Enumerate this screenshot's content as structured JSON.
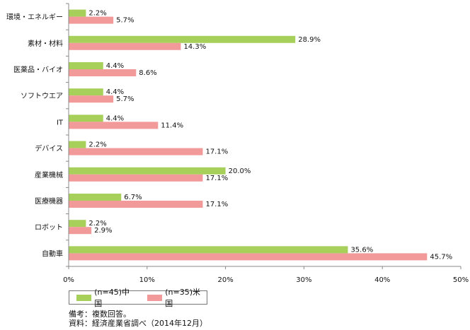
{
  "chart_data": {
    "type": "bar",
    "orientation": "horizontal",
    "categories": [
      "環境・エネルギー",
      "素材・材料",
      "医薬品・バイオ",
      "ソフトウエア",
      "IT",
      "デバイス",
      "産業機械",
      "医療機器",
      "ロボット",
      "自動車"
    ],
    "series": [
      {
        "name": "(n=45)中国",
        "color": "#a6d05a",
        "values": [
          2.2,
          28.9,
          4.4,
          4.4,
          4.4,
          2.2,
          20.0,
          6.7,
          2.2,
          35.6
        ],
        "labels": [
          "2.2%",
          "28.9%",
          "4.4%",
          "4.4%",
          "4.4%",
          "2.2%",
          "20.0%",
          "6.7%",
          "2.2%",
          "35.6%"
        ]
      },
      {
        "name": "(n=35)米国",
        "color": "#f29a99",
        "values": [
          5.7,
          14.3,
          8.6,
          5.7,
          11.4,
          17.1,
          17.1,
          17.1,
          2.9,
          45.7
        ],
        "labels": [
          "5.7%",
          "14.3%",
          "8.6%",
          "5.7%",
          "11.4%",
          "17.1%",
          "17.1%",
          "17.1%",
          "2.9%",
          "45.7%"
        ]
      }
    ],
    "xlim": [
      0,
      50
    ],
    "xticks": [
      0,
      10,
      20,
      30,
      40,
      50
    ],
    "xtick_labels": [
      "0%",
      "10%",
      "20%",
      "30%",
      "40%",
      "50%"
    ],
    "grid": false,
    "legend_position": "bottom-left"
  },
  "notes": {
    "line1": "備考：複数回答。",
    "line2": "資料：経済産業省調べ（2014年12月）"
  }
}
